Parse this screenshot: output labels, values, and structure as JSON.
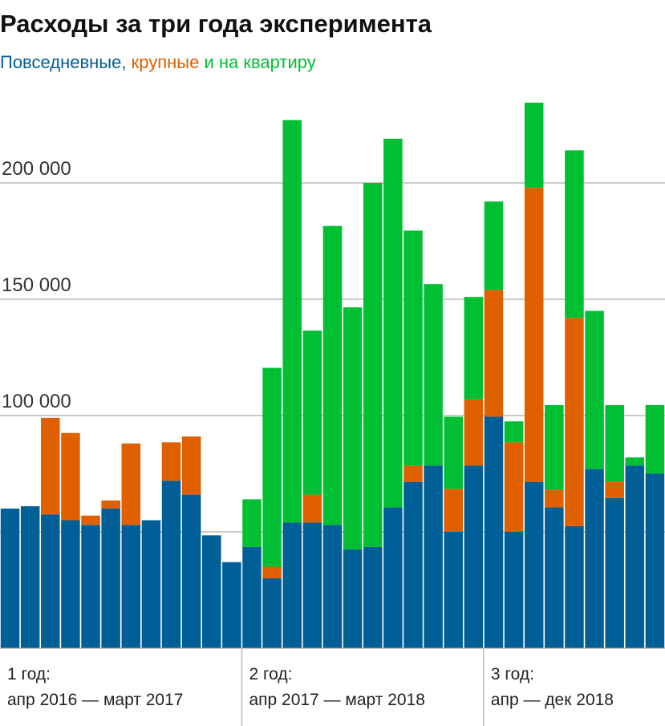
{
  "chart_data": {
    "type": "stacked_bar",
    "title": "Расходы за три года эксперимента",
    "legend_joiners": [
      ", ",
      " и "
    ],
    "categories": [
      null,
      null,
      null,
      null,
      null,
      null,
      null,
      null,
      null,
      null,
      null,
      null,
      null,
      null,
      null,
      null,
      null,
      null,
      null,
      null,
      null,
      null,
      null,
      null,
      null,
      null,
      null,
      null,
      null,
      null,
      null,
      null,
      null
    ],
    "series": [
      {
        "name": "Повседневные",
        "color": "#005f96",
        "values": [
          60000,
          61000,
          57500,
          55000,
          53000,
          60000,
          53000,
          55000,
          72000,
          66000,
          48500,
          37000,
          43500,
          30000,
          54000,
          54000,
          53000,
          42500,
          43500,
          60500,
          71500,
          78500,
          50000,
          78500,
          99500,
          50000,
          71500,
          60500,
          52500,
          77000,
          64500,
          78500,
          75000
        ]
      },
      {
        "name": "крупные",
        "color": "#e06000",
        "values": [
          0,
          0,
          41500,
          37500,
          4000,
          3500,
          35000,
          0,
          16500,
          25000,
          0,
          0,
          0,
          5000,
          0,
          12000,
          0,
          0,
          0,
          0,
          7000,
          0,
          18500,
          28500,
          54500,
          38500,
          126500,
          7500,
          89500,
          0,
          7000,
          0,
          0
        ]
      },
      {
        "name": "на квартиру",
        "color": "#00bf33",
        "values": [
          0,
          0,
          0,
          0,
          0,
          0,
          0,
          0,
          0,
          0,
          0,
          0,
          20500,
          85500,
          173000,
          70500,
          128500,
          104000,
          156500,
          158500,
          101000,
          78000,
          31000,
          44000,
          38000,
          9000,
          36500,
          36500,
          72000,
          68000,
          33000,
          3500,
          29500
        ]
      }
    ],
    "ylim": [
      0,
      240000
    ],
    "yticks": [
      {
        "value": 100000,
        "label": "100 000"
      },
      {
        "value": 150000,
        "label": "150 000"
      },
      {
        "value": 200000,
        "label": "200 000"
      }
    ],
    "minor_gridlines": [
      50000
    ],
    "grid": true,
    "periods": [
      {
        "title": "1 год:",
        "range": "апр 2016 — март 2017",
        "months": 12
      },
      {
        "title": "2 год:",
        "range": "апр 2017 — март 2018",
        "months": 12
      },
      {
        "title": "3 год:",
        "range": "апр — дек 2018",
        "months": 9
      }
    ]
  }
}
